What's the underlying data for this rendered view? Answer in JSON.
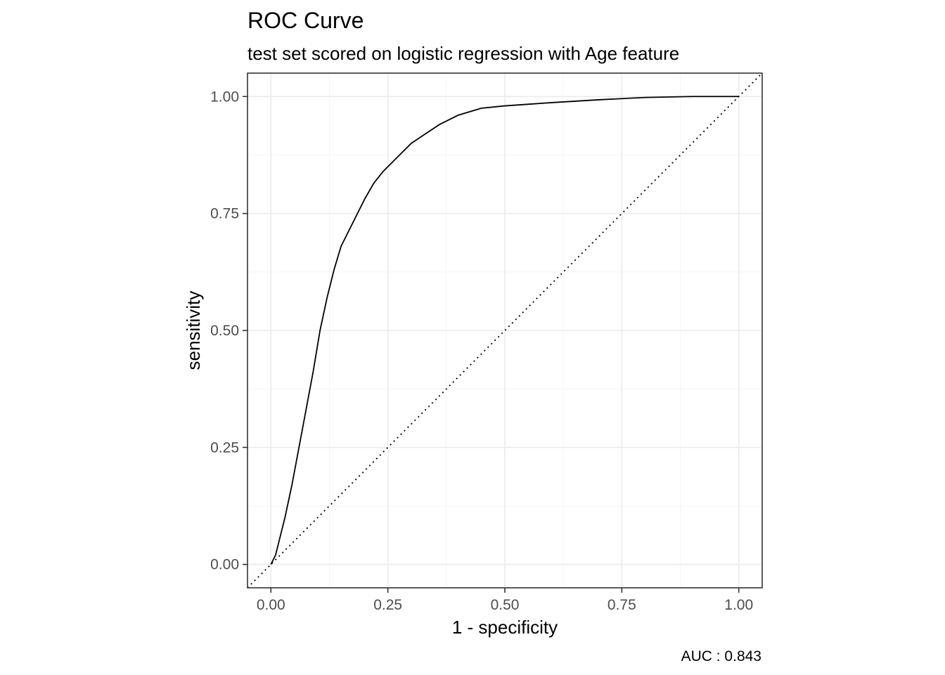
{
  "chart_data": {
    "type": "line",
    "title": "ROC Curve",
    "subtitle": "test set scored on logistic regression with Age feature",
    "xlabel": "1 - specificity",
    "ylabel": "sensitivity",
    "caption": "AUC : 0.843",
    "xlim": [
      -0.05,
      1.05
    ],
    "ylim": [
      -0.05,
      1.05
    ],
    "x_ticks": [
      0,
      0.25,
      0.5,
      0.75,
      1
    ],
    "x_tick_labels": [
      "0.00",
      "0.25",
      "0.50",
      "0.75",
      "1.00"
    ],
    "y_ticks": [
      0,
      0.25,
      0.5,
      0.75,
      1
    ],
    "y_tick_labels": [
      "0.00",
      "0.25",
      "0.50",
      "0.75",
      "1.00"
    ],
    "grid": true,
    "series": [
      {
        "x": [
          0,
          0.01,
          0.02,
          0.03,
          0.045,
          0.06,
          0.075,
          0.09,
          0.105,
          0.12,
          0.135,
          0.15,
          0.165,
          0.18,
          0.2,
          0.22,
          0.24,
          0.27,
          0.3,
          0.33,
          0.36,
          0.4,
          0.45,
          0.5,
          0.6,
          0.7,
          0.8,
          0.9,
          1.0
        ],
        "y": [
          0,
          0.02,
          0.06,
          0.1,
          0.17,
          0.25,
          0.33,
          0.41,
          0.5,
          0.57,
          0.63,
          0.68,
          0.71,
          0.74,
          0.78,
          0.815,
          0.84,
          0.87,
          0.9,
          0.92,
          0.94,
          0.96,
          0.975,
          0.98,
          0.987,
          0.993,
          0.998,
          1.0,
          1.0
        ]
      }
    ],
    "reference_line": {
      "x": [
        0,
        1
      ],
      "y": [
        0,
        1
      ]
    }
  }
}
